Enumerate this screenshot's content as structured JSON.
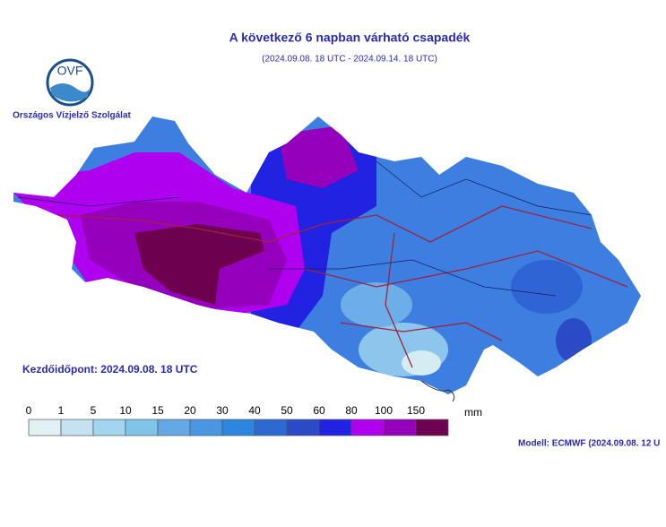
{
  "header": {
    "title": "A következő 6 napban várható csapadék",
    "subtitle": "(2024.09.08. 18 UTC - 2024.09.14. 18 UTC)"
  },
  "logo": {
    "mark": "OVF",
    "organization": "Országos Vízjelző Szolgálat"
  },
  "start_time": "Kezdőidőpont: 2024.09.08. 18 UTC",
  "legend": {
    "ticks": [
      0,
      1,
      5,
      10,
      15,
      20,
      30,
      40,
      50,
      60,
      80,
      100,
      150
    ],
    "colors": [
      "#e2f2f4",
      "#c4e2ef",
      "#a2d6ef",
      "#80c4ea",
      "#64a8e6",
      "#4a96e0",
      "#2c86de",
      "#2c6ad2",
      "#2a4ac6",
      "#2222e2",
      "#b000f0",
      "#9400bc",
      "#6e0050"
    ],
    "unit": "mm"
  },
  "model": "Modell:  ECMWF (2024.09.08. 12 U"
}
